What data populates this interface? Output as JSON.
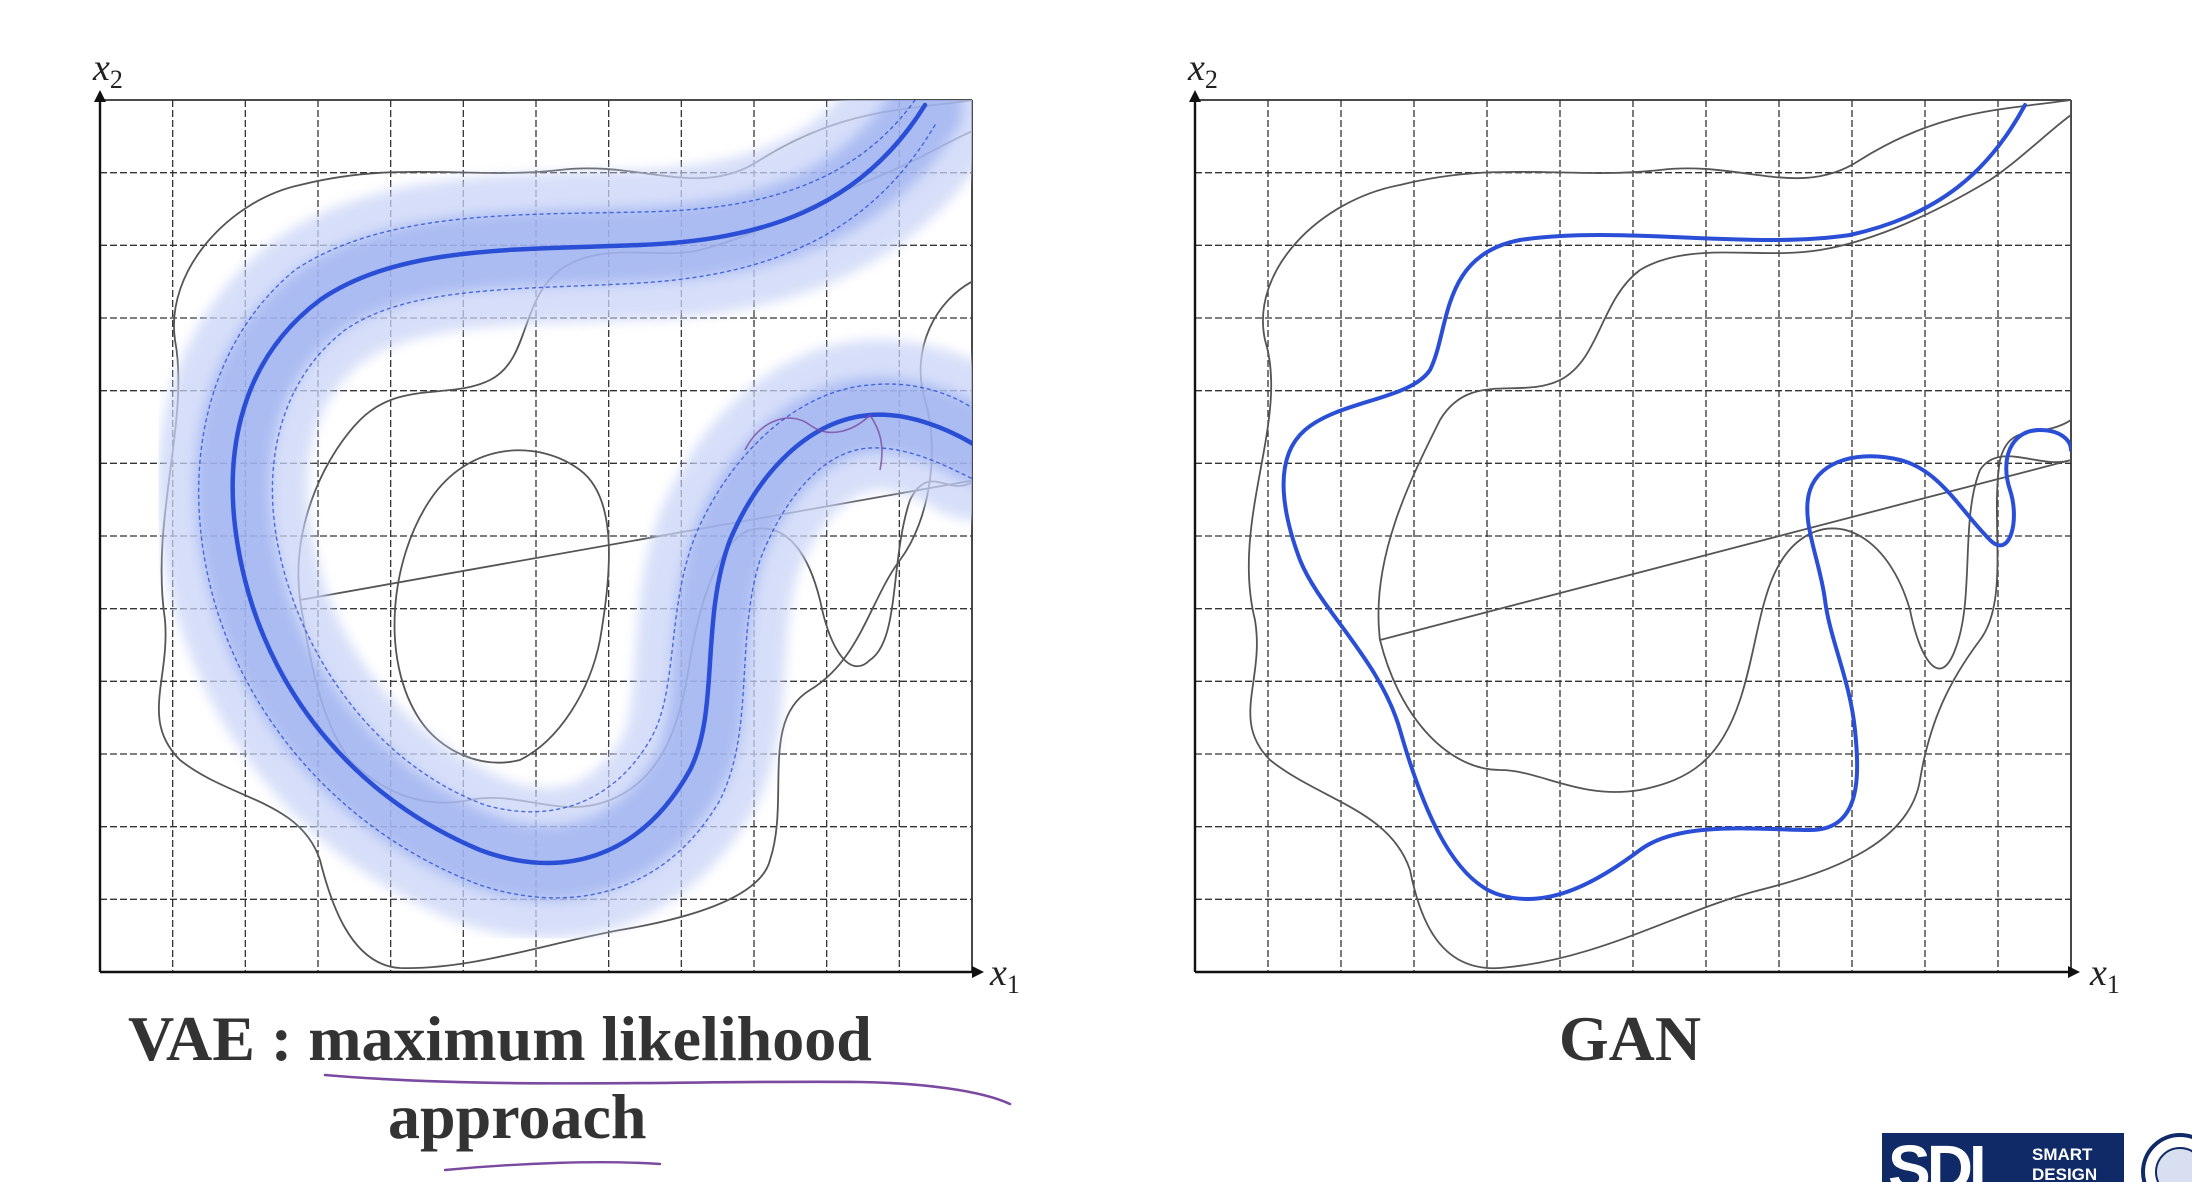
{
  "left_panel": {
    "axis_x": "x",
    "axis_x_sub": "1",
    "axis_y": "x",
    "axis_y_sub": "2",
    "caption_line1_prefix": "VAE : ",
    "caption_line1_underlined": "maximum likelihood",
    "caption_line2": "approach"
  },
  "right_panel": {
    "axis_x": "x",
    "axis_x_sub": "1",
    "axis_y": "x",
    "axis_y_sub": "2",
    "caption": "GAN"
  },
  "logo": {
    "letters": "SDL",
    "line1": "SMART",
    "line2": "DESIGN"
  },
  "colors": {
    "background": "#ffffff",
    "grid": "#333333",
    "data_curve": "#555555",
    "model_curve": "#2a4fd6",
    "vae_band": "#8fa6ee",
    "annotation": "#7a4aa0",
    "logo_bg": "#0f2a66"
  }
}
